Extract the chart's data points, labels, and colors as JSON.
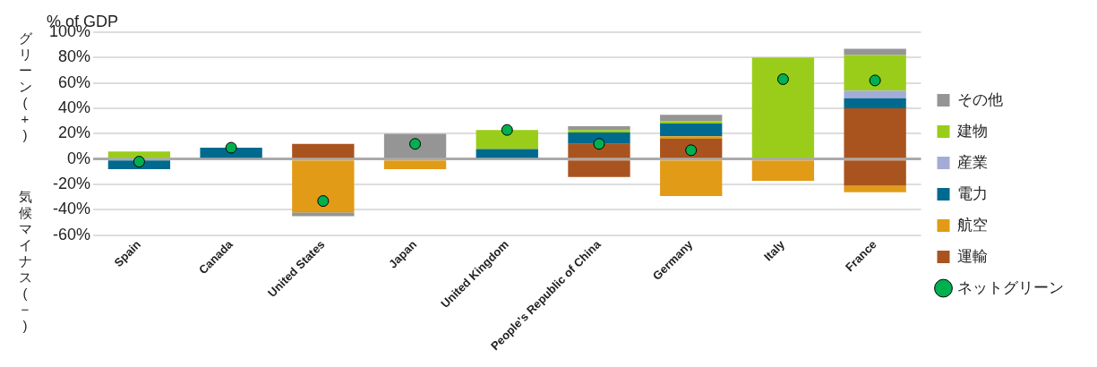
{
  "chart_data": {
    "type": "bar",
    "stacked": true,
    "ylabel": "% of GDP",
    "categories": [
      "Spain",
      "Canada",
      "United States",
      "Japan",
      "United Kingdom",
      "People's Republic of China",
      "Germany",
      "Italy",
      "France"
    ],
    "series": [
      {
        "name": "運輸",
        "color": "#a9541f",
        "values": [
          null,
          null,
          12,
          null,
          null,
          12,
          16,
          null,
          40
        ]
      },
      {
        "color": "#a9541f",
        "values": [
          null,
          null,
          null,
          null,
          null,
          -14,
          null,
          null,
          -21
        ]
      },
      {
        "name": "航空",
        "color": "#e19b17",
        "values": [
          null,
          null,
          -42,
          -8,
          null,
          null,
          -29,
          -17,
          -5
        ]
      },
      {
        "color": "#e19b17",
        "values": [
          null,
          null,
          null,
          null,
          null,
          null,
          2,
          null,
          null
        ]
      },
      {
        "name": "電力",
        "color": "#006a8e",
        "values": [
          -8,
          9,
          null,
          null,
          8,
          9,
          10,
          null,
          8
        ]
      },
      {
        "name": "産業",
        "color": "#a3acd6",
        "values": [
          null,
          null,
          null,
          null,
          null,
          null,
          null,
          null,
          6
        ]
      },
      {
        "name": "建物",
        "color": "#9acd1a",
        "values": [
          6,
          null,
          null,
          null,
          15,
          2,
          2,
          80,
          28
        ]
      },
      {
        "name": "その他",
        "color": "#959595",
        "values": [
          null,
          null,
          -3,
          20,
          null,
          3,
          5,
          null,
          5
        ]
      },
      {
        "name": "ネットグリーン",
        "type": "scatter",
        "marker": "circle",
        "color": "#00b050",
        "x": [
          "Spain",
          "Canada",
          "United States",
          "Japan",
          "United Kingdom",
          "People's Republic of China",
          "Germany",
          "Italy",
          "France"
        ],
        "values": [
          -2,
          9,
          -33,
          12,
          23,
          12,
          7,
          63,
          62
        ]
      }
    ],
    "ylim": [
      -60,
      100
    ],
    "yticks": [
      {
        "value": -60,
        "label": "-60%"
      },
      {
        "value": -40,
        "label": "-40%"
      },
      {
        "value": -20,
        "label": "-20%"
      },
      {
        "value": 0,
        "label": "0%"
      },
      {
        "value": 20,
        "label": "20%"
      },
      {
        "value": 40,
        "label": "40%"
      },
      {
        "value": 60,
        "label": "60%"
      },
      {
        "value": 80,
        "label": "80%"
      },
      {
        "value": 100,
        "label": "100%"
      }
    ],
    "grid": "y",
    "legend": "right",
    "annotations": [
      "グリーン(+)",
      "気候マイナス(−)"
    ]
  }
}
